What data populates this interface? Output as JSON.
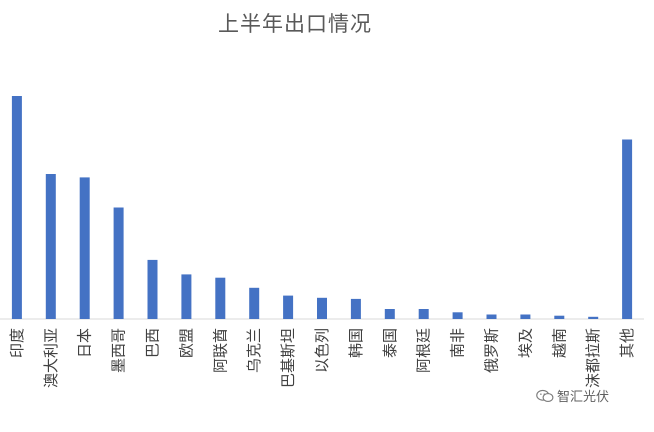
{
  "chart_data": {
    "type": "bar",
    "title": "上半年出口情况",
    "categories": [
      "印度",
      "澳大利亚",
      "日本",
      "墨西哥",
      "巴西",
      "欧盟",
      "阿联酋",
      "乌克兰",
      "巴基斯坦",
      "以色列",
      "韩国",
      "泰国",
      "阿根廷",
      "南非",
      "俄罗斯",
      "埃及",
      "越南",
      "沫都拉斯",
      "其他"
    ],
    "values": [
      100,
      65,
      63.5,
      50,
      26.5,
      20,
      18.5,
      14,
      10.5,
      9.5,
      9,
      4.5,
      4.5,
      3,
      2,
      2,
      1.5,
      1,
      80.5
    ],
    "xlabel": "",
    "ylabel": "",
    "ylim": [
      0,
      100
    ],
    "grid": false,
    "legend": "none",
    "bar_color": "#4472c4"
  },
  "watermark": {
    "text": "智汇光伏",
    "icon": "wechat-logo-icon"
  }
}
